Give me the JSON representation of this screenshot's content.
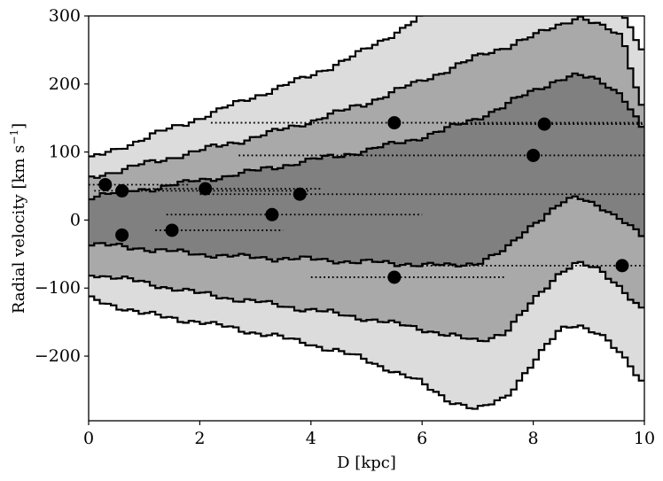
{
  "chart_data": {
    "type": "scatter",
    "xlabel": "D [kpc]",
    "ylabel": "Radial velocity [km s",
    "ylabel_sup": "−1",
    "ylabel_end": "]",
    "xlim": [
      0,
      10
    ],
    "ylim": [
      -295,
      300
    ],
    "x_ticks": [
      0,
      2,
      4,
      6,
      8,
      10
    ],
    "x_tick_labels": [
      "0",
      "2",
      "4",
      "6",
      "8",
      "10"
    ],
    "y_ticks": [
      -200,
      -100,
      0,
      100,
      200,
      300
    ],
    "y_tick_labels": [
      "−200",
      "−100",
      "0",
      "100",
      "200",
      "300"
    ],
    "grid": false,
    "band_colors": [
      "#dcdcdc",
      "#a9a9a9",
      "#808080"
    ],
    "band_x": [
      0,
      1,
      2,
      3,
      4,
      5,
      6,
      6.5,
      7,
      7.5,
      8,
      8.5,
      8.8,
      9.2,
      9.6,
      10
    ],
    "bands": [
      {
        "upper": [
          88,
          120,
          150,
          182,
          212,
          250,
          300,
          330,
          330,
          330,
          330,
          330,
          330,
          320,
          300,
          245
        ],
        "lower": [
          -115,
          -138,
          -150,
          -165,
          -182,
          -205,
          -240,
          -265,
          -280,
          -260,
          -210,
          -160,
          -152,
          -168,
          -200,
          -240
        ]
      },
      {
        "upper": [
          62,
          82,
          102,
          122,
          145,
          172,
          205,
          222,
          240,
          255,
          270,
          288,
          300,
          285,
          270,
          155
        ],
        "lower": [
          -78,
          -92,
          -108,
          -120,
          -132,
          -145,
          -160,
          -170,
          -178,
          -165,
          -120,
          -75,
          -62,
          -75,
          -100,
          -135
        ]
      },
      {
        "upper": [
          35,
          45,
          58,
          72,
          88,
          102,
          122,
          135,
          150,
          168,
          190,
          208,
          212,
          205,
          185,
          128
        ],
        "lower": [
          -35,
          -42,
          -50,
          -55,
          -58,
          -62,
          -65,
          -68,
          -62,
          -45,
          -5,
          25,
          32,
          22,
          0,
          -28
        ]
      }
    ],
    "points": [
      {
        "x": 0.3,
        "y": 52,
        "x_err": [
          0.0,
          1.8
        ]
      },
      {
        "x": 0.6,
        "y": 43,
        "x_err": [
          0.1,
          4.0
        ]
      },
      {
        "x": 0.6,
        "y": -22,
        "x_err": [
          0.6,
          0.6
        ]
      },
      {
        "x": 1.5,
        "y": -15,
        "x_err": [
          1.2,
          3.5
        ]
      },
      {
        "x": 2.1,
        "y": 46,
        "x_err": [
          1.0,
          4.2
        ]
      },
      {
        "x": 3.3,
        "y": 8,
        "x_err": [
          1.4,
          6.0
        ]
      },
      {
        "x": 3.8,
        "y": 38,
        "x_err": [
          2.0,
          10.0
        ]
      },
      {
        "x": 5.5,
        "y": 143,
        "x_err": [
          2.2,
          10.0
        ]
      },
      {
        "x": 5.5,
        "y": -84,
        "x_err": [
          4.0,
          7.5
        ]
      },
      {
        "x": 8.0,
        "y": 95,
        "x_err": [
          2.7,
          10.0
        ]
      },
      {
        "x": 8.2,
        "y": 141,
        "x_err": [
          6.8,
          10.0
        ]
      },
      {
        "x": 9.6,
        "y": -67,
        "x_err": [
          6.0,
          10.0
        ]
      }
    ]
  }
}
